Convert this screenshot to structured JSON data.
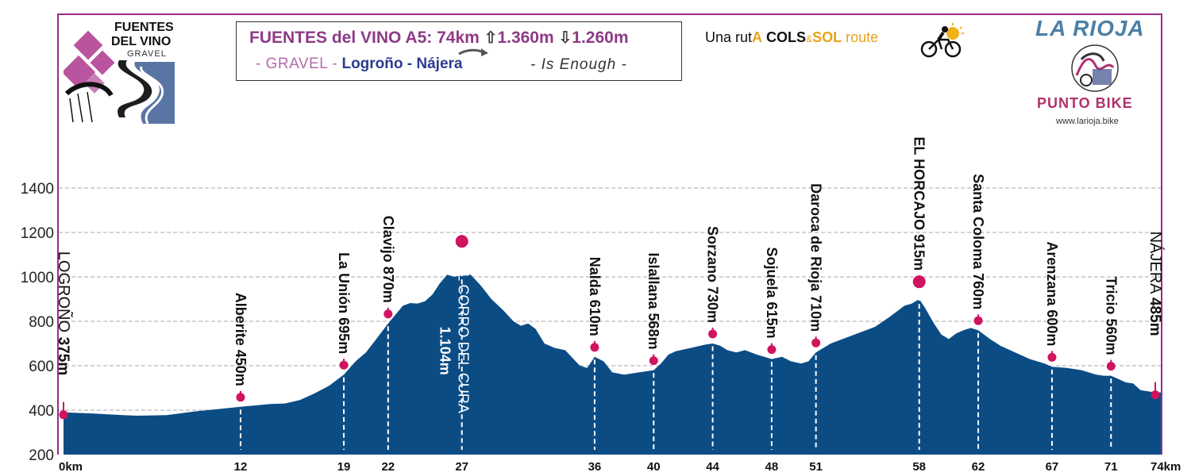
{
  "header": {
    "route_name": "FUENTES del VINO A5:",
    "distance": "74km",
    "ascent": "1.360m",
    "descent": "1.260m",
    "gravel": "- GRAVEL -",
    "from": "Logroño",
    "separator": "-",
    "to": "Nájera",
    "slogan": "- Is Enough -"
  },
  "logo": {
    "line1": "FUENTES",
    "line2": "DEL VINO",
    "line3": "GRAVEL"
  },
  "brand": {
    "ruta_prefix": "Una rut",
    "ruta_a": "A",
    "cols": "COLS",
    "amp": "&",
    "sol": "SOL",
    "route": "route",
    "region": "LA RIOJA",
    "shop": "PUNTO BIKE",
    "web": "www.larioja.bike"
  },
  "colors": {
    "profile_fill": "#0c4c85",
    "marker": "#d0145f",
    "frame": "#9b2c8c",
    "grid": "#bbbbbb"
  },
  "chart_data": {
    "type": "area",
    "xlabel": "",
    "ylabel": "",
    "xlim": [
      0,
      74
    ],
    "ylim": [
      200,
      1500
    ],
    "y_ticks": [
      200,
      400,
      600,
      800,
      1000,
      1200,
      1400
    ],
    "x_ticks": [
      {
        "x": 0,
        "label": "0km"
      },
      {
        "x": 12,
        "label": "12"
      },
      {
        "x": 19,
        "label": "19"
      },
      {
        "x": 22,
        "label": "22"
      },
      {
        "x": 27,
        "label": "27"
      },
      {
        "x": 36,
        "label": "36"
      },
      {
        "x": 40,
        "label": "40"
      },
      {
        "x": 44,
        "label": "44"
      },
      {
        "x": 48,
        "label": "48"
      },
      {
        "x": 51,
        "label": "51"
      },
      {
        "x": 58,
        "label": "58"
      },
      {
        "x": 62,
        "label": "62"
      },
      {
        "x": 67,
        "label": "67"
      },
      {
        "x": 71,
        "label": "71"
      },
      {
        "x": 74,
        "label": "74km"
      }
    ],
    "grid": true,
    "profile": [
      [
        0,
        390
      ],
      [
        2,
        385
      ],
      [
        4,
        378
      ],
      [
        5,
        375
      ],
      [
        7,
        378
      ],
      [
        9,
        395
      ],
      [
        12,
        415
      ],
      [
        14,
        428
      ],
      [
        15,
        430
      ],
      [
        16,
        445
      ],
      [
        17,
        475
      ],
      [
        18,
        510
      ],
      [
        19,
        560
      ],
      [
        19.8,
        620
      ],
      [
        20.5,
        660
      ],
      [
        21.2,
        720
      ],
      [
        22,
        790
      ],
      [
        22.5,
        830
      ],
      [
        23,
        870
      ],
      [
        23.5,
        882
      ],
      [
        24,
        880
      ],
      [
        24.5,
        890
      ],
      [
        25,
        920
      ],
      [
        25.5,
        970
      ],
      [
        26,
        1010
      ],
      [
        26.5,
        1000
      ],
      [
        27,
        1010
      ],
      [
        27.6,
        1010
      ],
      [
        28.3,
        960
      ],
      [
        29,
        900
      ],
      [
        29.8,
        850
      ],
      [
        30.5,
        800
      ],
      [
        31,
        780
      ],
      [
        31.5,
        790
      ],
      [
        32,
        765
      ],
      [
        32.6,
        700
      ],
      [
        33.3,
        680
      ],
      [
        34,
        670
      ],
      [
        35,
        600
      ],
      [
        35.5,
        590
      ],
      [
        36,
        640
      ],
      [
        36.6,
        620
      ],
      [
        37.2,
        570
      ],
      [
        38,
        560
      ],
      [
        39,
        570
      ],
      [
        40,
        580
      ],
      [
        40.5,
        610
      ],
      [
        41,
        650
      ],
      [
        41.5,
        665
      ],
      [
        42.5,
        680
      ],
      [
        43.5,
        695
      ],
      [
        44,
        700
      ],
      [
        44.5,
        690
      ],
      [
        45,
        670
      ],
      [
        45.6,
        660
      ],
      [
        46.2,
        670
      ],
      [
        47,
        650
      ],
      [
        47.5,
        640
      ],
      [
        48,
        630
      ],
      [
        48.7,
        640
      ],
      [
        49.3,
        620
      ],
      [
        50,
        610
      ],
      [
        50.5,
        620
      ],
      [
        51,
        660
      ],
      [
        52,
        700
      ],
      [
        53,
        725
      ],
      [
        54,
        750
      ],
      [
        55,
        775
      ],
      [
        56,
        820
      ],
      [
        57,
        870
      ],
      [
        57.5,
        880
      ],
      [
        58,
        900
      ],
      [
        58.4,
        860
      ],
      [
        59,
        790
      ],
      [
        59.5,
        740
      ],
      [
        60,
        720
      ],
      [
        60.5,
        745
      ],
      [
        61,
        760
      ],
      [
        61.5,
        770
      ],
      [
        62,
        760
      ],
      [
        62.8,
        720
      ],
      [
        63.5,
        690
      ],
      [
        64.5,
        660
      ],
      [
        65.5,
        630
      ],
      [
        66.5,
        610
      ],
      [
        67,
        595
      ],
      [
        68,
        590
      ],
      [
        69,
        580
      ],
      [
        70,
        560
      ],
      [
        70.5,
        555
      ],
      [
        71,
        555
      ],
      [
        71.5,
        540
      ],
      [
        72,
        525
      ],
      [
        72.5,
        520
      ],
      [
        73,
        490
      ],
      [
        73.5,
        485
      ],
      [
        74,
        480
      ]
    ],
    "waypoints": [
      {
        "x": 0,
        "elev": 375,
        "label": "LOGROÑO",
        "alt": "375m",
        "type": "town"
      },
      {
        "x": 12,
        "elev": 450,
        "label": "Alberite",
        "alt": "450m",
        "type": "place"
      },
      {
        "x": 19,
        "elev": 695,
        "label": "La Unión",
        "alt": "695m",
        "type": "place"
      },
      {
        "x": 22,
        "elev": 870,
        "label": "Clavijo",
        "alt": "870m",
        "type": "place"
      },
      {
        "x": 27,
        "elev": 1104,
        "label": "EL CORRO DEL CURA",
        "alt": "1.104m",
        "type": "summit"
      },
      {
        "x": 36,
        "elev": 610,
        "label": "Nalda",
        "alt": "610m",
        "type": "place"
      },
      {
        "x": 40,
        "elev": 568,
        "label": "Islallana",
        "alt": "568m",
        "type": "place"
      },
      {
        "x": 44,
        "elev": 730,
        "label": "Sorzano",
        "alt": "730m",
        "type": "place"
      },
      {
        "x": 48,
        "elev": 615,
        "label": "Sojuela",
        "alt": "615m",
        "type": "place"
      },
      {
        "x": 51,
        "elev": 710,
        "label": "Daroca de Rioja",
        "alt": "710m",
        "type": "place"
      },
      {
        "x": 58,
        "elev": 915,
        "label": "EL HORCAJO",
        "alt": "915m",
        "type": "summit2"
      },
      {
        "x": 62,
        "elev": 760,
        "label": "Santa Coloma",
        "alt": "760m",
        "type": "place"
      },
      {
        "x": 67,
        "elev": 600,
        "label": "Arenzana",
        "alt": "600m",
        "type": "place"
      },
      {
        "x": 71,
        "elev": 560,
        "label": "Tricio",
        "alt": "560m",
        "type": "place"
      },
      {
        "x": 74,
        "elev": 485,
        "label": "NÁJERA",
        "alt": "485m",
        "type": "town"
      }
    ]
  }
}
